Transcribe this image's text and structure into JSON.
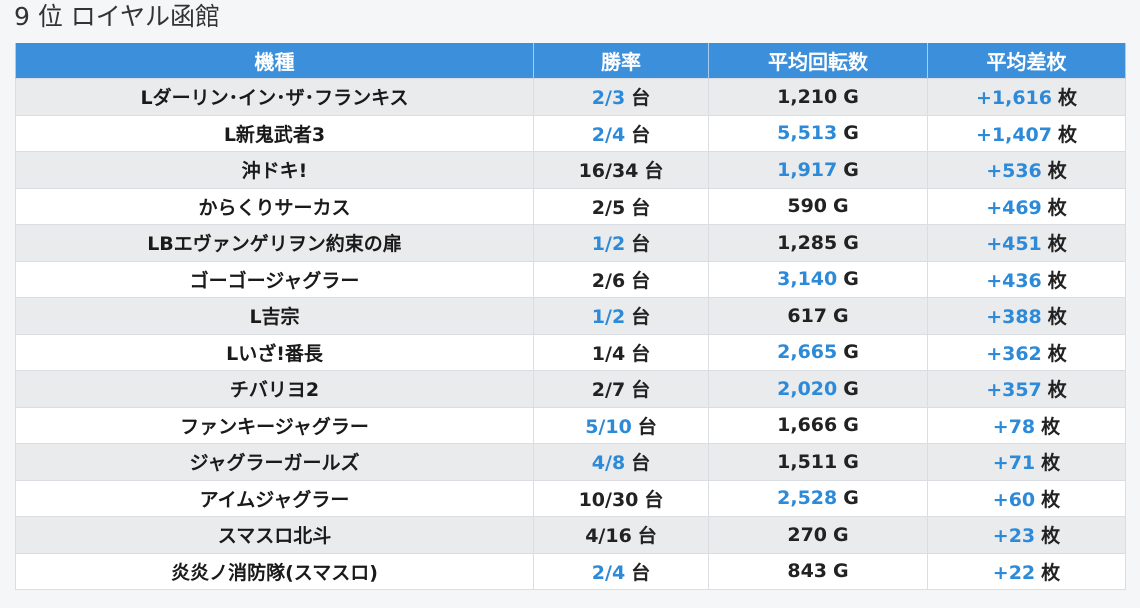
{
  "page_title": "9 位 ロイヤル函館",
  "table": {
    "headers": [
      "機種",
      "勝率",
      "平均回転数",
      "平均差枚"
    ],
    "rows": [
      {
        "name": "Lダーリン･イン･ザ･フランキス",
        "win": "2/3",
        "win_hl": true,
        "spins": "1,210",
        "spins_hl": false,
        "diff": "+1,616",
        "diff_hl": true
      },
      {
        "name": "L新鬼武者3",
        "win": "2/4",
        "win_hl": true,
        "spins": "5,513",
        "spins_hl": true,
        "diff": "+1,407",
        "diff_hl": true
      },
      {
        "name": "沖ドキ!",
        "win": "16/34",
        "win_hl": false,
        "spins": "1,917",
        "spins_hl": true,
        "diff": "+536",
        "diff_hl": true
      },
      {
        "name": "からくりサーカス",
        "win": "2/5",
        "win_hl": false,
        "spins": "590",
        "spins_hl": false,
        "diff": "+469",
        "diff_hl": true
      },
      {
        "name": "LBエヴァンゲリヲン約束の扉",
        "win": "1/2",
        "win_hl": true,
        "spins": "1,285",
        "spins_hl": false,
        "diff": "+451",
        "diff_hl": true
      },
      {
        "name": "ゴーゴージャグラー",
        "win": "2/6",
        "win_hl": false,
        "spins": "3,140",
        "spins_hl": true,
        "diff": "+436",
        "diff_hl": true
      },
      {
        "name": "L吉宗",
        "win": "1/2",
        "win_hl": true,
        "spins": "617",
        "spins_hl": false,
        "diff": "+388",
        "diff_hl": true
      },
      {
        "name": "Lいざ!番長",
        "win": "1/4",
        "win_hl": false,
        "spins": "2,665",
        "spins_hl": true,
        "diff": "+362",
        "diff_hl": true
      },
      {
        "name": "チバリヨ2",
        "win": "2/7",
        "win_hl": false,
        "spins": "2,020",
        "spins_hl": true,
        "diff": "+357",
        "diff_hl": true
      },
      {
        "name": "ファンキージャグラー",
        "win": "5/10",
        "win_hl": true,
        "spins": "1,666",
        "spins_hl": false,
        "diff": "+78",
        "diff_hl": true
      },
      {
        "name": "ジャグラーガールズ",
        "win": "4/8",
        "win_hl": true,
        "spins": "1,511",
        "spins_hl": false,
        "diff": "+71",
        "diff_hl": true
      },
      {
        "name": "アイムジャグラー",
        "win": "10/30",
        "win_hl": false,
        "spins": "2,528",
        "spins_hl": true,
        "diff": "+60",
        "diff_hl": true
      },
      {
        "name": "スマスロ北斗",
        "win": "4/16",
        "win_hl": false,
        "spins": "270",
        "spins_hl": false,
        "diff": "+23",
        "diff_hl": true
      },
      {
        "name": "炎炎ノ消防隊(スマスロ)",
        "win": "2/4",
        "win_hl": true,
        "spins": "843",
        "spins_hl": false,
        "diff": "+22",
        "diff_hl": true
      }
    ],
    "unit_win": "台",
    "unit_spins": "G",
    "unit_diff": "枚"
  },
  "colors": {
    "header_bg": "#3b8fdb",
    "highlight_text": "#2c8ad8",
    "stripe_odd": "#eaebed",
    "stripe_even": "#ffffff"
  }
}
